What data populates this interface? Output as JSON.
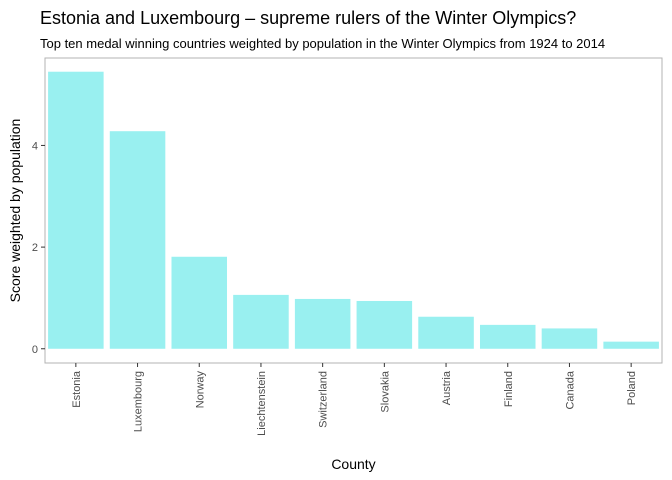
{
  "chart_data": {
    "type": "bar",
    "title": "Estonia and Luxembourg – supreme rulers of the Winter Olympics?",
    "subtitle": "Top ten medal winning countries weighted by population in the Winter Olympics from 1924 to 2014",
    "xlabel": "County",
    "ylabel": "Score weighted by population",
    "categories": [
      "Estonia",
      "Luxembourg",
      "Norway",
      "Liechtenstein",
      "Switzerland",
      "Slovakia",
      "Austria",
      "Finland",
      "Canada",
      "Poland"
    ],
    "values": [
      5.45,
      4.28,
      1.81,
      1.06,
      0.98,
      0.94,
      0.63,
      0.47,
      0.4,
      0.14
    ],
    "y_ticks": [
      "0",
      "2",
      "4"
    ],
    "ylim": [
      -0.28,
      5.72
    ],
    "bar_color": "#99F0F0",
    "grid": false,
    "legend": "none"
  }
}
